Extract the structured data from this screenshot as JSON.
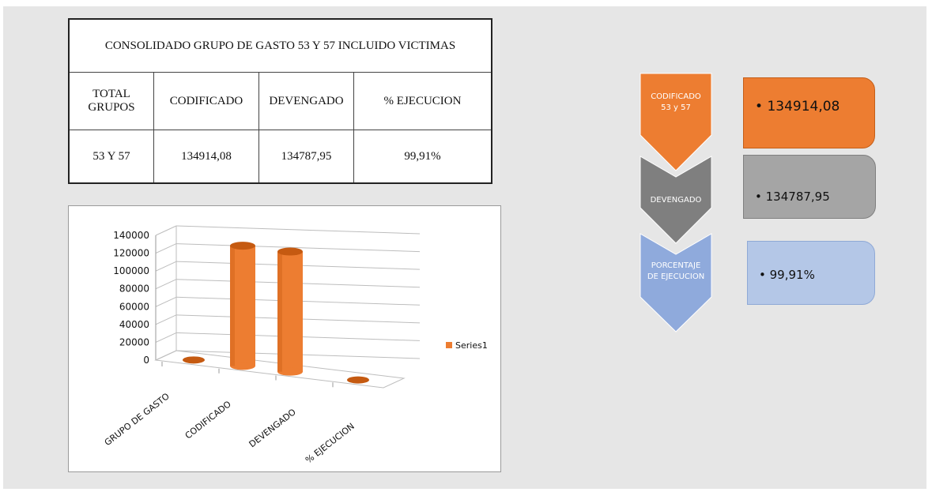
{
  "table": {
    "title": "CONSOLIDADO GRUPO DE GASTO 53 Y 57 INCLUIDO VICTIMAS",
    "headers": [
      "TOTAL GRUPOS",
      "CODIFICADO",
      "DEVENGADO",
      "% EJECUCION"
    ],
    "row": [
      "53 Y 57",
      "134914,08",
      "134787,95",
      "99,91%"
    ]
  },
  "chart_data": {
    "type": "bar",
    "categories": [
      "GRUPO DE GASTO",
      "CODIFICADO",
      "DEVENGADO",
      "% EJECUCION"
    ],
    "series": [
      {
        "name": "Series1",
        "values": [
          0,
          134914.08,
          134787.95,
          0
        ]
      }
    ],
    "y_ticks": [
      "140000",
      "120000",
      "100000",
      "80000",
      "60000",
      "40000",
      "20000",
      "0"
    ],
    "ylim": [
      0,
      140000
    ],
    "legend": "right",
    "grid": true,
    "colors": {
      "bar": "#ed7d31",
      "bar_dark": "#c55a11"
    }
  },
  "flow": {
    "steps": [
      {
        "label_lines": [
          "CODIFICADO",
          "53 y 57"
        ],
        "value": "134914,08",
        "arrow_color": "#ed7d31",
        "box_color": "#ed7d31"
      },
      {
        "label_lines": [
          "DEVENGADO"
        ],
        "value": "134787,95",
        "arrow_color": "#7f7f7f",
        "box_color": "#a5a5a5"
      },
      {
        "label_lines": [
          "PORCENTAJE",
          "DE EJECUCION"
        ],
        "value": "99,91%",
        "arrow_color": "#8faadc",
        "box_color": "#b4c7e7"
      }
    ],
    "bullet": "•"
  }
}
